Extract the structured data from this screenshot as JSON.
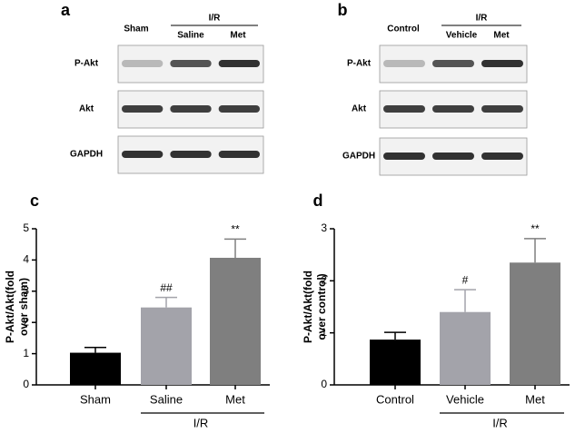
{
  "blots": [
    {
      "letter": "a",
      "group": "I/R",
      "lanes": [
        "Sham",
        "Saline",
        "Met"
      ],
      "rows": [
        "P-Akt",
        "Akt",
        "GAPDH"
      ]
    },
    {
      "letter": "b",
      "group": "I/R",
      "lanes": [
        "Control",
        "Vehicle",
        "Met"
      ],
      "rows": [
        "P-Akt",
        "Akt",
        "GAPDH"
      ]
    }
  ],
  "chart_data": [
    {
      "type": "bar",
      "letter": "c",
      "ylabel": [
        "P-Akt/Akt(fold",
        "over sham)"
      ],
      "categories": [
        "Sham",
        "Saline",
        "Met"
      ],
      "values": [
        1.03,
        2.48,
        4.07
      ],
      "errors": [
        0.17,
        0.32,
        0.6
      ],
      "annotations": [
        null,
        "##",
        "**"
      ],
      "colors": [
        "#000000",
        "#a3a3aa",
        "#7f7f7f"
      ],
      "group": "I/R",
      "ylim": [
        0,
        5
      ],
      "yticks": [
        0,
        1,
        2,
        3,
        4,
        5
      ]
    },
    {
      "type": "bar",
      "letter": "d",
      "ylabel": [
        "P-Akt/Akt(fold",
        "over control)"
      ],
      "categories": [
        "Control",
        "Vehicle",
        "Met"
      ],
      "values": [
        0.87,
        1.4,
        2.35
      ],
      "errors": [
        0.14,
        0.43,
        0.46
      ],
      "annotations": [
        null,
        "#",
        "**"
      ],
      "colors": [
        "#000000",
        "#a3a3aa",
        "#7f7f7f"
      ],
      "group": "I/R",
      "ylim": [
        0,
        3
      ],
      "yticks": [
        0,
        1,
        2,
        3
      ]
    }
  ]
}
